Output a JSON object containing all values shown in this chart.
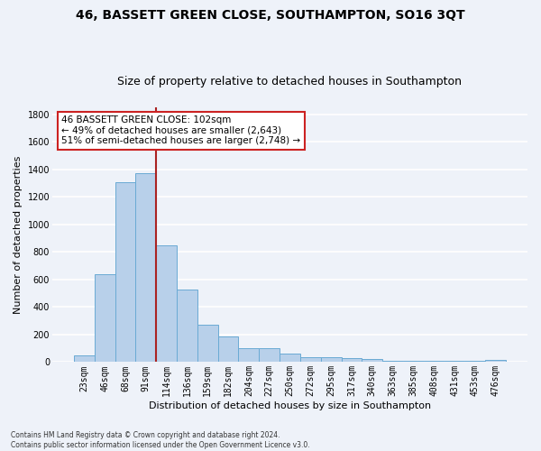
{
  "title": "46, BASSETT GREEN CLOSE, SOUTHAMPTON, SO16 3QT",
  "subtitle": "Size of property relative to detached houses in Southampton",
  "xlabel": "Distribution of detached houses by size in Southampton",
  "ylabel": "Number of detached properties",
  "categories": [
    "23sqm",
    "46sqm",
    "68sqm",
    "91sqm",
    "114sqm",
    "136sqm",
    "159sqm",
    "182sqm",
    "204sqm",
    "227sqm",
    "250sqm",
    "272sqm",
    "295sqm",
    "317sqm",
    "340sqm",
    "363sqm",
    "385sqm",
    "408sqm",
    "431sqm",
    "453sqm",
    "476sqm"
  ],
  "values": [
    50,
    637,
    1305,
    1375,
    848,
    530,
    272,
    183,
    103,
    103,
    60,
    37,
    37,
    30,
    20,
    10,
    10,
    10,
    10,
    10,
    13
  ],
  "bar_color": "#b8d0ea",
  "bar_edge_color": "#6aaad4",
  "vline_color": "#aa2222",
  "vline_x_idx": 3,
  "annotation_text": "46 BASSETT GREEN CLOSE: 102sqm\n← 49% of detached houses are smaller (2,643)\n51% of semi-detached houses are larger (2,748) →",
  "annotation_box_color": "white",
  "annotation_box_edge": "#cc2222",
  "ylim": [
    0,
    1850
  ],
  "yticks": [
    0,
    200,
    400,
    600,
    800,
    1000,
    1200,
    1400,
    1600,
    1800
  ],
  "background_color": "#eef2f9",
  "grid_color": "#ffffff",
  "footer": "Contains HM Land Registry data © Crown copyright and database right 2024.\nContains public sector information licensed under the Open Government Licence v3.0.",
  "title_fontsize": 10,
  "subtitle_fontsize": 9,
  "axis_label_fontsize": 8,
  "tick_fontsize": 7
}
